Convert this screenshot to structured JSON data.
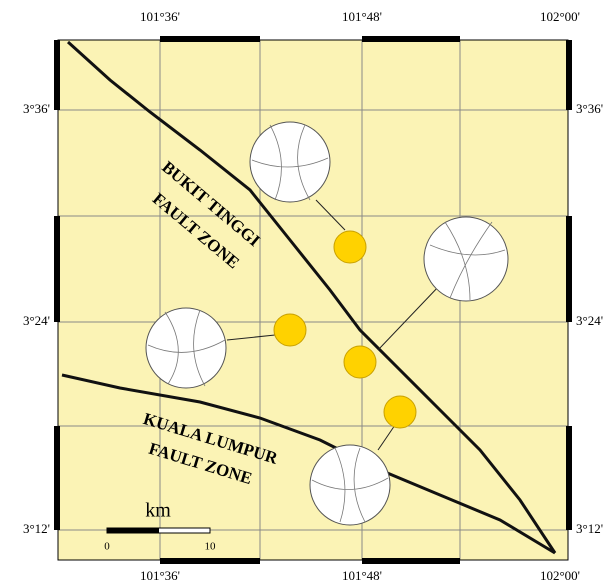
{
  "map": {
    "top_labels": [
      "101°36'",
      "101°48'",
      "102°00'"
    ],
    "bottom_labels": [
      "101°36'",
      "101°48'",
      "102°00'"
    ],
    "left_labels": [
      "3°36'",
      "3°24'",
      "3°12'"
    ],
    "right_labels": [
      "3°36'",
      "3°24'",
      "3°12'"
    ],
    "fault_labels": [
      [
        "BUKIT TINGGI",
        "FAULT ZONE"
      ],
      [
        "KUALA LUMPUR",
        "FAULT ZONE"
      ]
    ],
    "scale": {
      "unit": "km",
      "labels": [
        "0",
        "10"
      ]
    }
  }
}
